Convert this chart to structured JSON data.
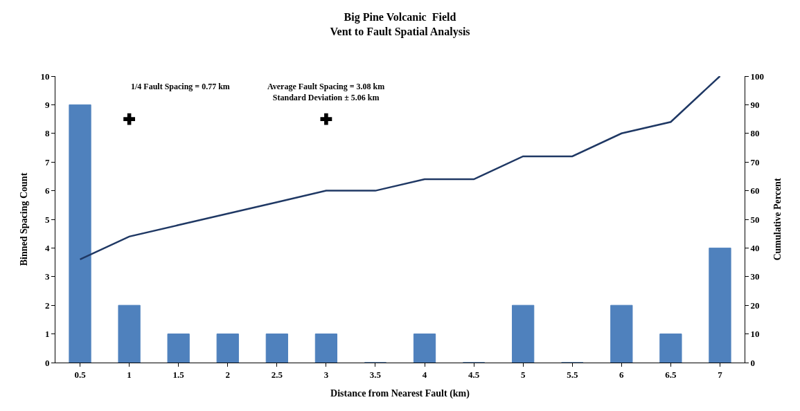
{
  "chart_data": {
    "type": "bar",
    "title": "Big Pine Volcanic  Field\nVent to Fault Spatial Analysis",
    "xlabel": "Distance from Nearest Fault (km)",
    "ylabel": "Binned Spacing Count",
    "y2label": "Cumulative Percent",
    "x": [
      0.5,
      1,
      1.5,
      2,
      2.5,
      3,
      3.5,
      4,
      4.5,
      5,
      5.5,
      6,
      6.5,
      7
    ],
    "xlim": [
      0.25,
      7.25
    ],
    "xticks": [
      0.5,
      1,
      1.5,
      2,
      2.5,
      3,
      3.5,
      4,
      4.5,
      5,
      5.5,
      6,
      6.5,
      7
    ],
    "ylim": [
      0,
      10
    ],
    "yticks": [
      0,
      1,
      2,
      3,
      4,
      5,
      6,
      7,
      8,
      9,
      10
    ],
    "y2lim": [
      0,
      100
    ],
    "y2ticks": [
      0,
      10,
      20,
      30,
      40,
      50,
      60,
      70,
      80,
      90,
      100
    ],
    "series": [
      {
        "color": "#4f81bd",
        "values": [
          9,
          2,
          1,
          1,
          1,
          1,
          0,
          1,
          0,
          2,
          0,
          2,
          1,
          4
        ]
      },
      {
        "type": "line",
        "axis": "y2",
        "color": "#1f3864",
        "values": [
          36,
          44,
          48,
          52,
          56,
          60,
          60,
          64,
          64,
          72,
          72,
          80,
          84,
          100
        ]
      },
      {
        "type": "scatter",
        "marker": "cross",
        "color": "#000000",
        "x": [
          1,
          3
        ],
        "values": [
          8.5,
          8.5
        ]
      }
    ],
    "annotations": [
      "1/4 Fault Spacing = 0.77 km",
      "Average Fault Spacing = 3.08 km\nStandard Deviation ± 5.06 km"
    ],
    "marker": "none"
  }
}
